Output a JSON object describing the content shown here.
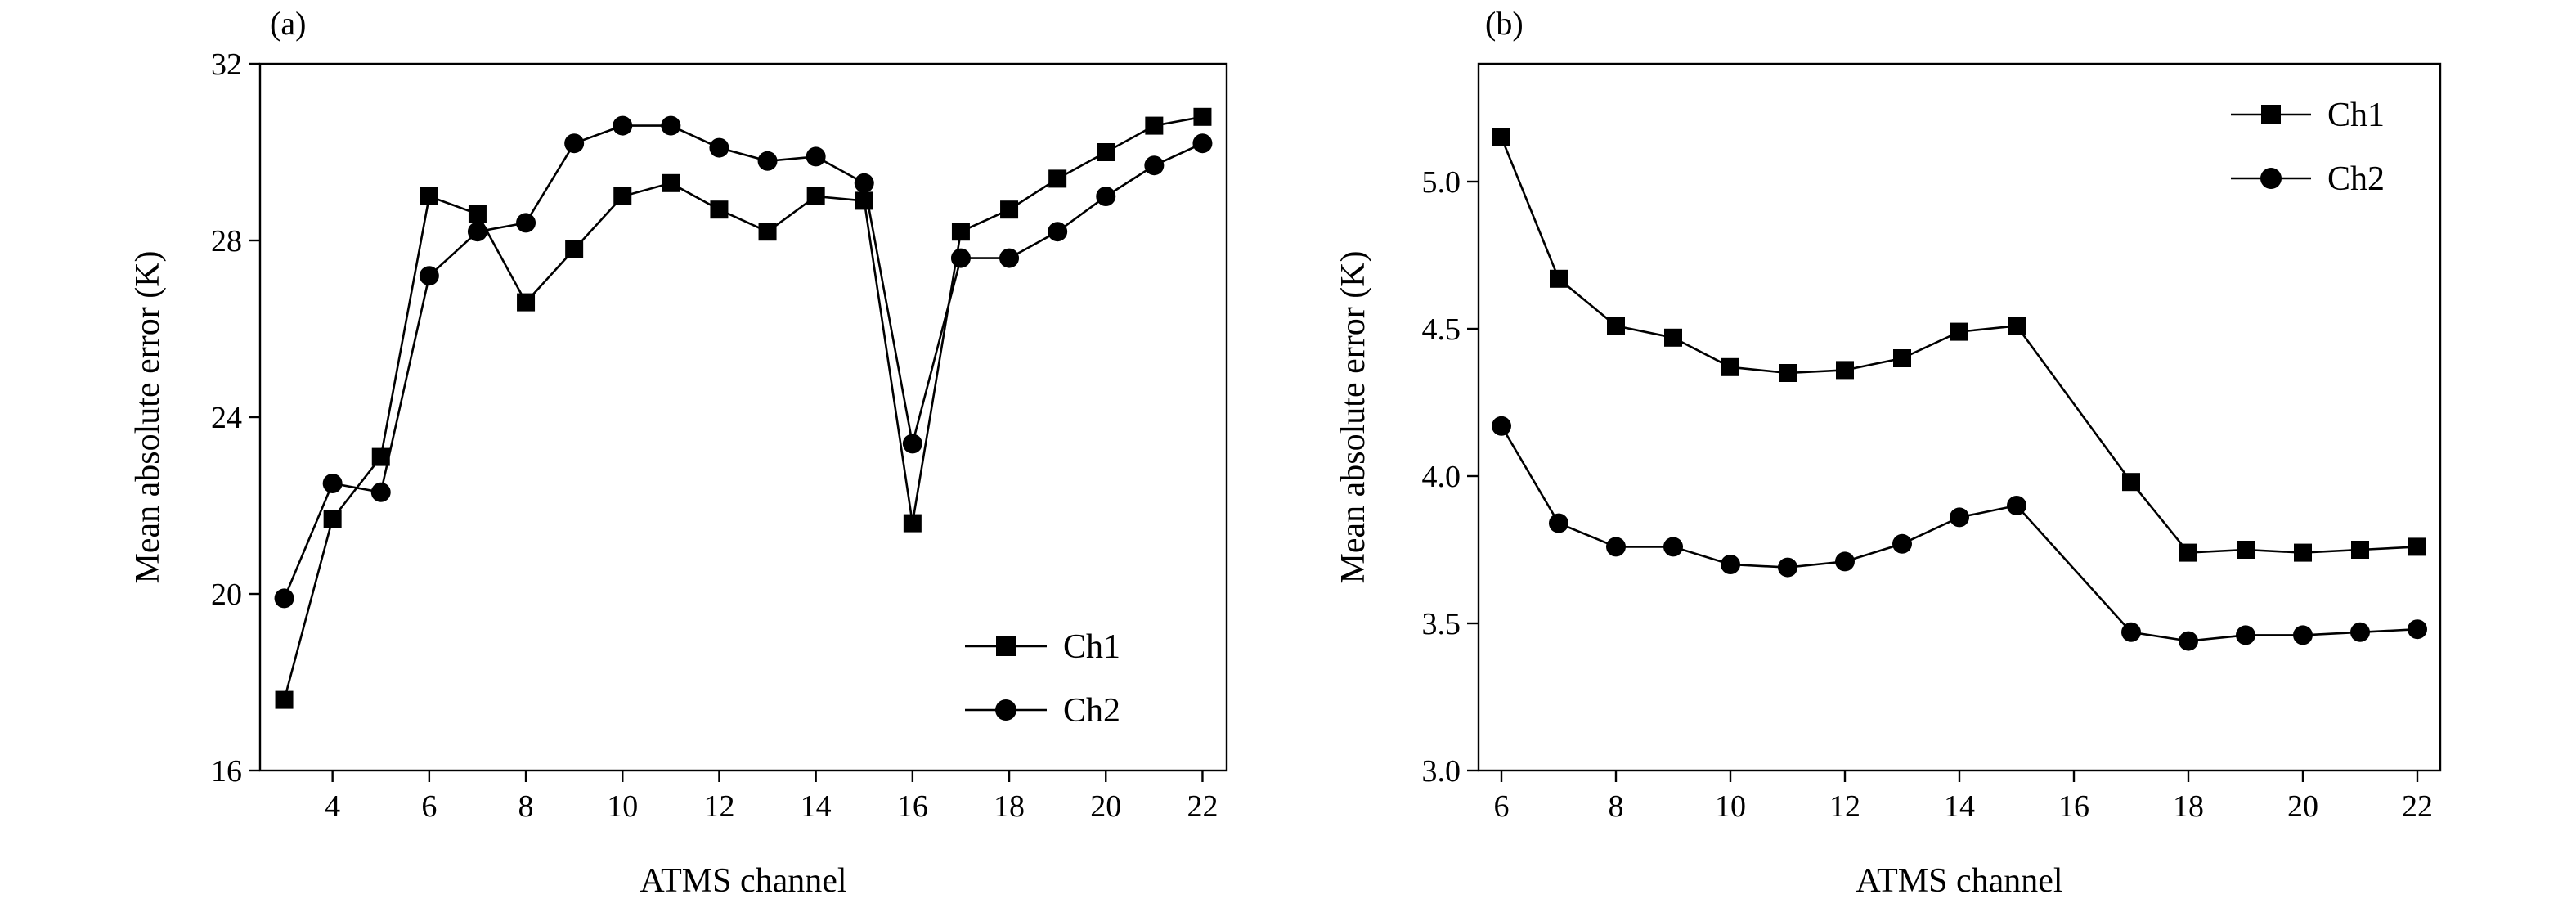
{
  "chart_data": [
    {
      "type": "line",
      "panel_label": "(a)",
      "xlabel": "ATMS channel",
      "ylabel": "Mean absolute error (K)",
      "xlim": [
        2.5,
        22.5
      ],
      "ylim": [
        16,
        32
      ],
      "xticks": [
        4,
        6,
        8,
        10,
        12,
        14,
        16,
        18,
        20,
        22
      ],
      "yticks": [
        16,
        20,
        24,
        28,
        32
      ],
      "ytick_format": "int",
      "legend_position": "bottom-right",
      "grid": false,
      "series": [
        {
          "name": "Ch1",
          "marker": "square",
          "x": [
            3,
            4,
            5,
            6,
            7,
            8,
            9,
            10,
            11,
            12,
            13,
            14,
            15,
            16,
            17,
            18,
            19,
            20,
            21,
            22
          ],
          "y": [
            17.6,
            21.7,
            23.1,
            29.0,
            28.6,
            26.6,
            27.8,
            29.0,
            29.3,
            28.7,
            28.2,
            29.0,
            28.9,
            21.6,
            28.2,
            28.7,
            29.4,
            30.0,
            30.6,
            30.8
          ]
        },
        {
          "name": "Ch2",
          "marker": "circle",
          "x": [
            3,
            4,
            5,
            6,
            7,
            8,
            9,
            10,
            11,
            12,
            13,
            14,
            15,
            16,
            17,
            18,
            19,
            20,
            21,
            22
          ],
          "y": [
            19.9,
            22.5,
            22.3,
            27.2,
            28.2,
            28.4,
            30.2,
            30.6,
            30.6,
            30.1,
            29.8,
            29.9,
            29.3,
            23.4,
            27.6,
            27.6,
            28.2,
            29.0,
            29.7,
            30.2
          ]
        }
      ]
    },
    {
      "type": "line",
      "panel_label": "(b)",
      "xlabel": "ATMS channel",
      "ylabel": "Mean absolute error (K)",
      "xlim": [
        5.6,
        22.4
      ],
      "ylim": [
        3.0,
        5.4
      ],
      "xticks": [
        6,
        8,
        10,
        12,
        14,
        16,
        18,
        20,
        22
      ],
      "yticks": [
        3.0,
        3.5,
        4.0,
        4.5,
        5.0
      ],
      "ytick_format": "1dp",
      "legend_position": "top-right",
      "grid": false,
      "series": [
        {
          "name": "Ch1",
          "marker": "square",
          "x": [
            6,
            7,
            8,
            9,
            10,
            11,
            12,
            13,
            14,
            15,
            17,
            18,
            19,
            20,
            21,
            22
          ],
          "y": [
            5.15,
            4.67,
            4.51,
            4.47,
            4.37,
            4.35,
            4.36,
            4.4,
            4.49,
            4.51,
            3.98,
            3.74,
            3.75,
            3.74,
            3.75,
            3.76
          ]
        },
        {
          "name": "Ch2",
          "marker": "circle",
          "x": [
            6,
            7,
            8,
            9,
            10,
            11,
            12,
            13,
            14,
            15,
            17,
            18,
            19,
            20,
            21,
            22
          ],
          "y": [
            4.17,
            3.84,
            3.76,
            3.76,
            3.7,
            3.69,
            3.71,
            3.77,
            3.86,
            3.9,
            3.47,
            3.44,
            3.46,
            3.46,
            3.47,
            3.48
          ]
        }
      ]
    }
  ]
}
